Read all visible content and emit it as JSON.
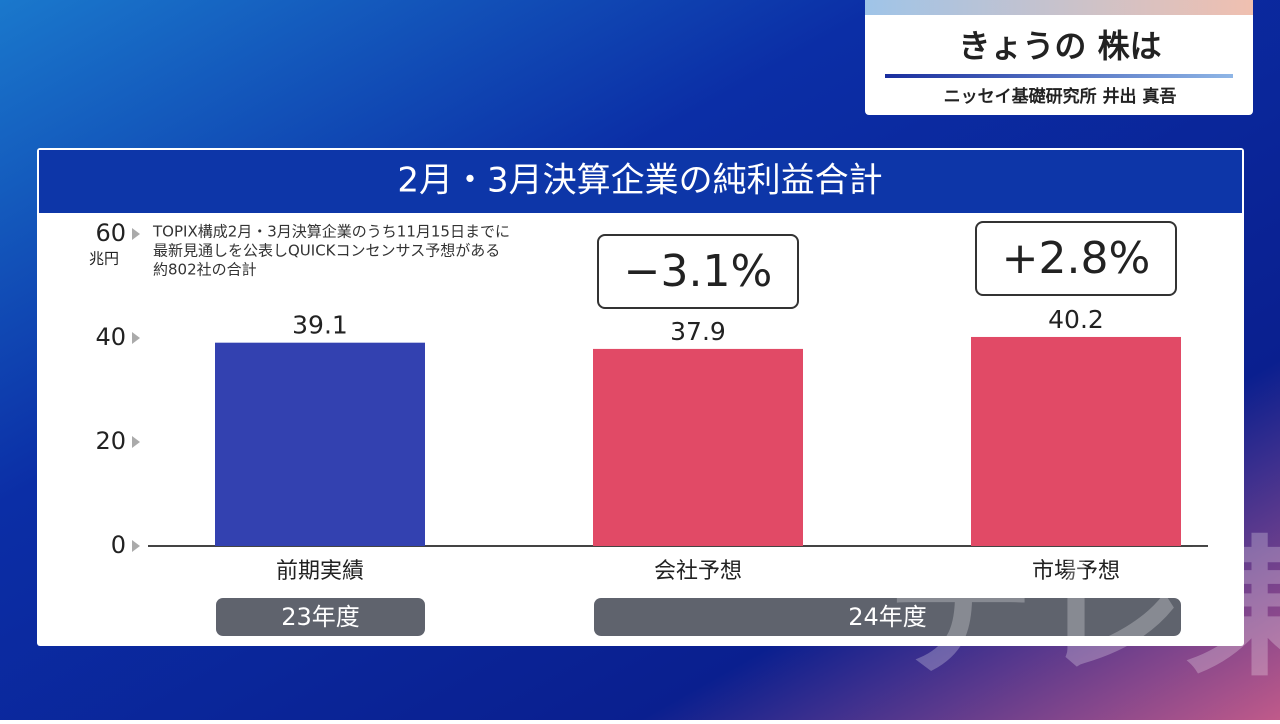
{
  "header": {
    "title": "きょうの 株は",
    "subtitle": "ニッセイ基礎研究所 井出 真吾"
  },
  "watermark": "テレ東",
  "chart_data": {
    "type": "bar",
    "title": "2月・3月決算企業の純利益合計",
    "y_unit": "兆円",
    "note": [
      "TOPIX構成2月・3月決算企業のうち11月15日までに",
      "最新見通しを公表しQUICKコンセンサス予想がある",
      "約802社の合計"
    ],
    "categories": [
      "前期実績",
      "会社予想",
      "市場予想"
    ],
    "values": [
      39.1,
      37.9,
      40.2
    ],
    "colors": [
      "#3341b0",
      "#e14a66",
      "#e14a66"
    ],
    "groups": [
      "23年度",
      "24年度"
    ],
    "annotations": [
      "−3.1%",
      "+2.8%"
    ],
    "ylim": [
      0,
      60
    ],
    "yticks": [
      0,
      20,
      40,
      60
    ]
  }
}
